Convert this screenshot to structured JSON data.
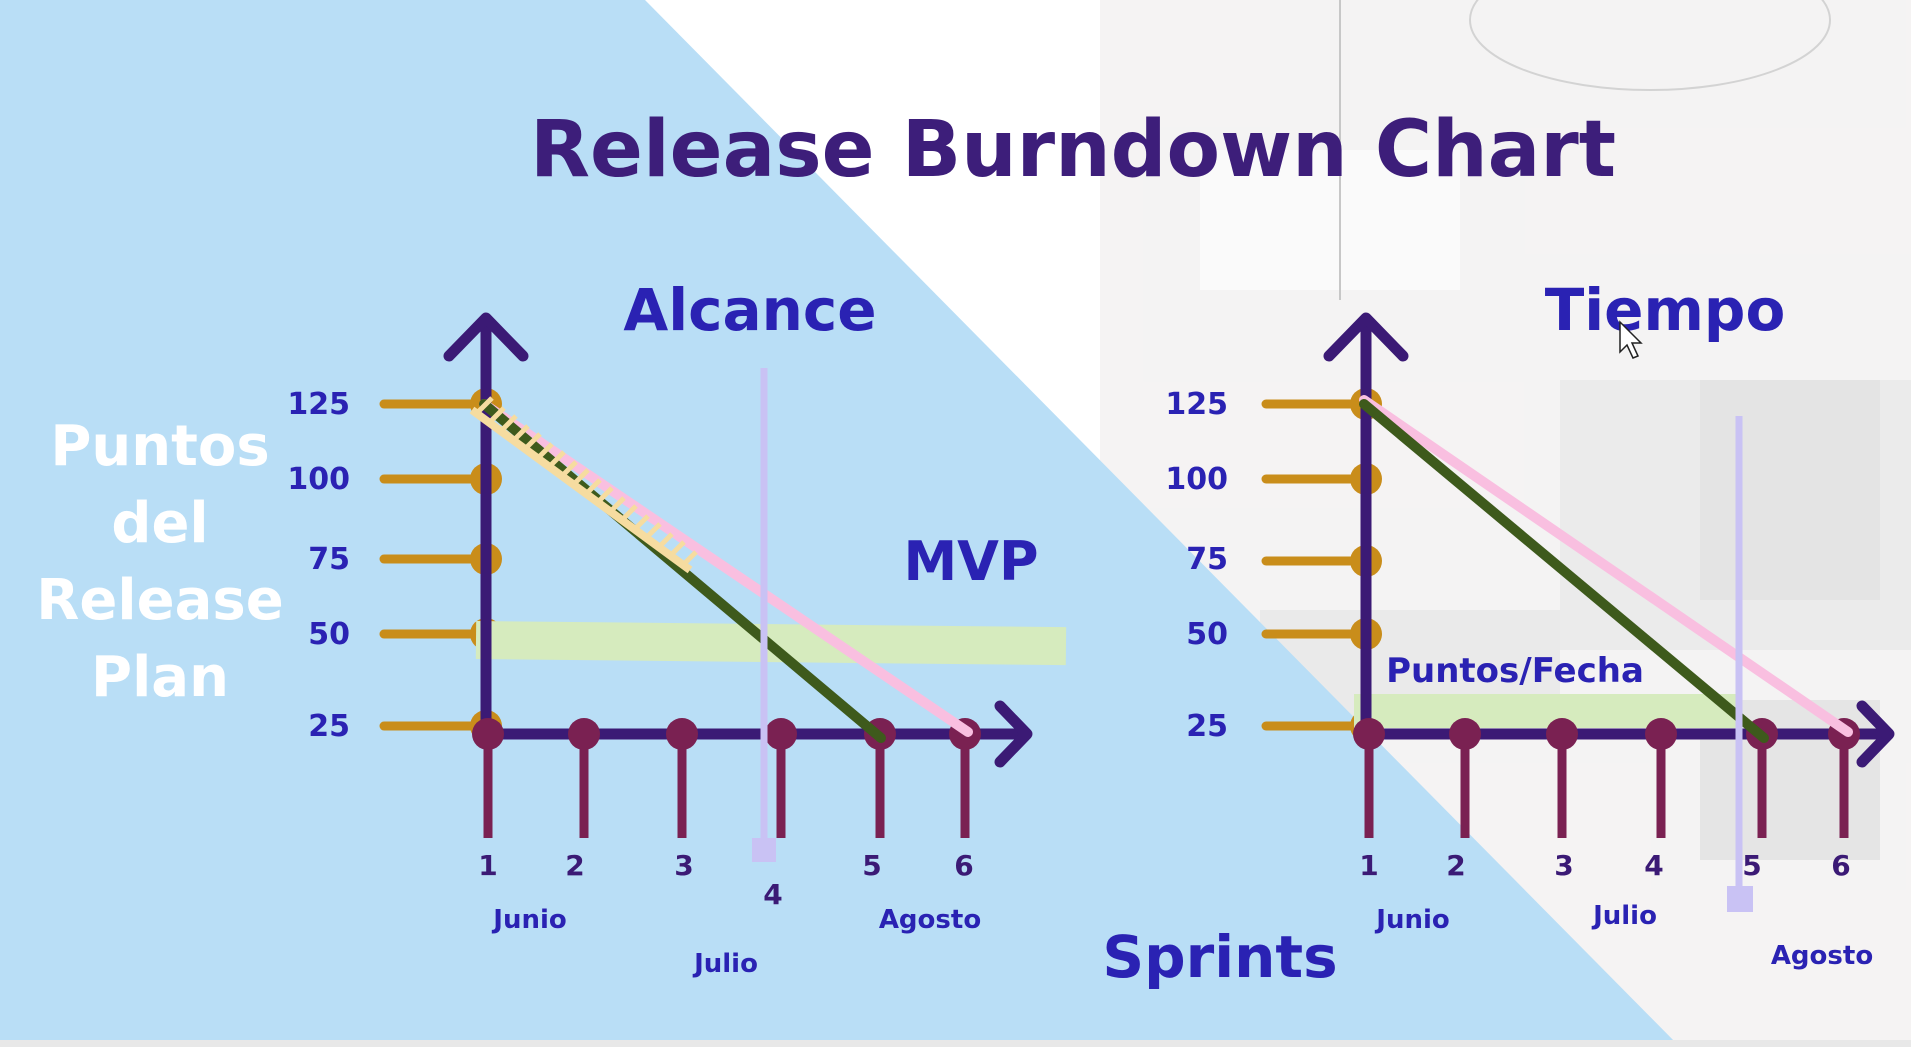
{
  "colors": {
    "panel_blue": "#b9def6",
    "title_purple": "#3d1e7a",
    "label_blue": "#2a22b3",
    "axis_purple": "#3b1a75",
    "tick_gold": "#c98d1a",
    "sprint_maroon": "#7a2152",
    "ideal_line_pink": "#f9bfe0",
    "actual_line_green": "#3e5a1c",
    "band_green": "#d6ebbe",
    "deadline_lavender": "#c9c2f4",
    "hatch_yellow": "#f6dca0",
    "side_label_white": "#ffffff"
  },
  "slide": {
    "title": "Release Burndown Chart",
    "side_label": [
      "Puntos",
      "del",
      "Release",
      "Plan"
    ],
    "bottom_label": "Sprints"
  },
  "cursor_icon": "mouse-pointer-icon",
  "chart_data": [
    {
      "type": "line",
      "title": "Alcance",
      "annotation": "MVP",
      "y_ticks": [
        "125",
        "100",
        "75",
        "50",
        "25"
      ],
      "x_ticks": [
        "1",
        "2",
        "3",
        "4",
        "5",
        "6"
      ],
      "months": [
        "Junio",
        "Julio",
        "Agosto"
      ],
      "series": [
        {
          "x": [
            1,
            6
          ],
          "y": [
            125,
            25
          ]
        },
        {
          "x": [
            1,
            5
          ],
          "y": [
            125,
            25
          ]
        }
      ],
      "band_value": 50,
      "deadline_sprint": 4
    },
    {
      "type": "line",
      "title": "Tiempo",
      "annotation": "Puntos/Fecha",
      "y_ticks": [
        "125",
        "100",
        "75",
        "50",
        "25"
      ],
      "x_ticks": [
        "1",
        "2",
        "3",
        "4",
        "5",
        "6"
      ],
      "months": [
        "Junio",
        "Julio",
        "Agosto"
      ],
      "series": [
        {
          "x": [
            1,
            6
          ],
          "y": [
            125,
            25
          ]
        },
        {
          "x": [
            1,
            5
          ],
          "y": [
            125,
            25
          ]
        }
      ],
      "band_value": 25,
      "deadline_sprint": 5
    }
  ]
}
